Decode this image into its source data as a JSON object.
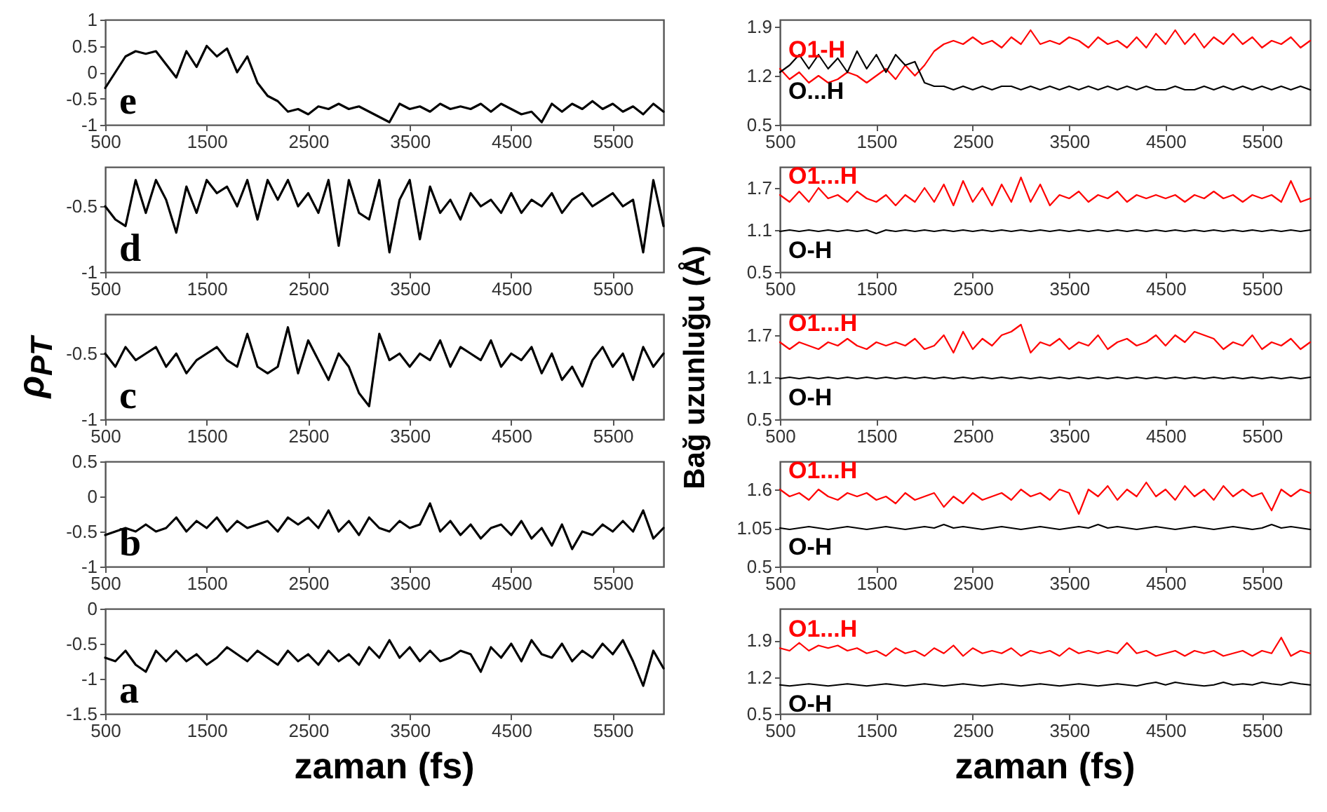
{
  "chart_data": [
    {
      "type": "line",
      "x": [
        500,
        600,
        700,
        800,
        900,
        1000,
        1100,
        1200,
        1300,
        1400,
        1500,
        1600,
        1700,
        1800,
        1900,
        2000,
        2100,
        2200,
        2300,
        2400,
        2500,
        2600,
        2700,
        2800,
        2900,
        3000,
        3100,
        3200,
        3300,
        3400,
        3500,
        3600,
        3700,
        3800,
        3900,
        4000,
        4100,
        4200,
        4300,
        4400,
        4500,
        4600,
        4700,
        4800,
        4900,
        5000,
        5100,
        5200,
        5300,
        5400,
        5500,
        5600,
        5700,
        5800,
        5900,
        6000
      ],
      "series": [
        {
          "color": "#000000",
          "values": [
            -0.3,
            0.0,
            0.3,
            0.4,
            0.35,
            0.4,
            0.15,
            -0.1,
            0.4,
            0.1,
            0.5,
            0.3,
            0.45,
            0.0,
            0.3,
            -0.2,
            -0.45,
            -0.55,
            -0.75,
            -0.7,
            -0.8,
            -0.65,
            -0.7,
            -0.6,
            -0.7,
            -0.65,
            -0.75,
            -0.85,
            -0.95,
            -0.6,
            -0.7,
            -0.65,
            -0.75,
            -0.6,
            -0.7,
            -0.65,
            -0.7,
            -0.6,
            -0.75,
            -0.6,
            -0.7,
            -0.8,
            -0.75,
            -0.95,
            -0.6,
            -0.75,
            -0.6,
            -0.7,
            -0.55,
            -0.7,
            -0.6,
            -0.75,
            -0.65,
            -0.8,
            -0.6,
            -0.75
          ]
        }
      ],
      "xlim": [
        500,
        6000
      ],
      "xticks": [
        500,
        1500,
        2500,
        3500,
        4500,
        5500
      ],
      "ylim": [
        -1,
        1
      ],
      "yticks": [
        -1,
        -0.5,
        0,
        0.5,
        1
      ],
      "annotations": [
        "e"
      ]
    },
    {
      "type": "line",
      "x": [
        500,
        600,
        700,
        800,
        900,
        1000,
        1100,
        1200,
        1300,
        1400,
        1500,
        1600,
        1700,
        1800,
        1900,
        2000,
        2100,
        2200,
        2300,
        2400,
        2500,
        2600,
        2700,
        2800,
        2900,
        3000,
        3100,
        3200,
        3300,
        3400,
        3500,
        3600,
        3700,
        3800,
        3900,
        4000,
        4100,
        4200,
        4300,
        4400,
        4500,
        4600,
        4700,
        4800,
        4900,
        5000,
        5100,
        5200,
        5300,
        5400,
        5500,
        5600,
        5700,
        5800,
        5900,
        6000
      ],
      "series": [
        {
          "color": "#000000",
          "values": [
            -0.5,
            -0.6,
            -0.65,
            -0.3,
            -0.55,
            -0.3,
            -0.45,
            -0.7,
            -0.35,
            -0.55,
            -0.3,
            -0.4,
            -0.35,
            -0.5,
            -0.3,
            -0.6,
            -0.3,
            -0.45,
            -0.3,
            -0.5,
            -0.4,
            -0.55,
            -0.3,
            -0.8,
            -0.3,
            -0.55,
            -0.6,
            -0.3,
            -0.85,
            -0.45,
            -0.3,
            -0.75,
            -0.35,
            -0.55,
            -0.45,
            -0.6,
            -0.4,
            -0.5,
            -0.45,
            -0.55,
            -0.4,
            -0.55,
            -0.45,
            -0.5,
            -0.4,
            -0.55,
            -0.45,
            -0.4,
            -0.5,
            -0.45,
            -0.4,
            -0.5,
            -0.45,
            -0.85,
            -0.3,
            -0.65
          ]
        }
      ],
      "xlim": [
        500,
        6000
      ],
      "xticks": [
        500,
        1500,
        2500,
        3500,
        4500,
        5500
      ],
      "ylim": [
        -1,
        -0.2
      ],
      "yticks": [
        -1,
        -0.5
      ],
      "annotations": [
        "d"
      ]
    },
    {
      "type": "line",
      "x": [
        500,
        600,
        700,
        800,
        900,
        1000,
        1100,
        1200,
        1300,
        1400,
        1500,
        1600,
        1700,
        1800,
        1900,
        2000,
        2100,
        2200,
        2300,
        2400,
        2500,
        2600,
        2700,
        2800,
        2900,
        3000,
        3100,
        3200,
        3300,
        3400,
        3500,
        3600,
        3700,
        3800,
        3900,
        4000,
        4100,
        4200,
        4300,
        4400,
        4500,
        4600,
        4700,
        4800,
        4900,
        5000,
        5100,
        5200,
        5300,
        5400,
        5500,
        5600,
        5700,
        5800,
        5900,
        6000
      ],
      "series": [
        {
          "color": "#000000",
          "values": [
            -0.5,
            -0.6,
            -0.45,
            -0.55,
            -0.5,
            -0.45,
            -0.6,
            -0.5,
            -0.65,
            -0.55,
            -0.5,
            -0.45,
            -0.55,
            -0.6,
            -0.35,
            -0.6,
            -0.65,
            -0.6,
            -0.3,
            -0.65,
            -0.4,
            -0.55,
            -0.7,
            -0.5,
            -0.6,
            -0.8,
            -0.9,
            -0.35,
            -0.55,
            -0.5,
            -0.6,
            -0.5,
            -0.55,
            -0.4,
            -0.6,
            -0.45,
            -0.5,
            -0.55,
            -0.4,
            -0.6,
            -0.5,
            -0.55,
            -0.45,
            -0.65,
            -0.5,
            -0.7,
            -0.6,
            -0.75,
            -0.55,
            -0.45,
            -0.6,
            -0.5,
            -0.7,
            -0.45,
            -0.6,
            -0.5
          ]
        }
      ],
      "xlim": [
        500,
        6000
      ],
      "xticks": [
        500,
        1500,
        2500,
        3500,
        4500,
        5500
      ],
      "ylim": [
        -1,
        -0.2
      ],
      "yticks": [
        -1,
        -0.5
      ],
      "ylabel": "ρ$_{PT}$",
      "annotations": [
        "c"
      ]
    },
    {
      "type": "line",
      "x": [
        500,
        600,
        700,
        800,
        900,
        1000,
        1100,
        1200,
        1300,
        1400,
        1500,
        1600,
        1700,
        1800,
        1900,
        2000,
        2100,
        2200,
        2300,
        2400,
        2500,
        2600,
        2700,
        2800,
        2900,
        3000,
        3100,
        3200,
        3300,
        3400,
        3500,
        3600,
        3700,
        3800,
        3900,
        4000,
        4100,
        4200,
        4300,
        4400,
        4500,
        4600,
        4700,
        4800,
        4900,
        5000,
        5100,
        5200,
        5300,
        5400,
        5500,
        5600,
        5700,
        5800,
        5900,
        6000
      ],
      "series": [
        {
          "color": "#000000",
          "values": [
            -0.55,
            -0.5,
            -0.45,
            -0.5,
            -0.4,
            -0.5,
            -0.45,
            -0.3,
            -0.5,
            -0.35,
            -0.45,
            -0.3,
            -0.5,
            -0.35,
            -0.45,
            -0.4,
            -0.35,
            -0.5,
            -0.3,
            -0.4,
            -0.3,
            -0.45,
            -0.2,
            -0.5,
            -0.35,
            -0.55,
            -0.3,
            -0.45,
            -0.5,
            -0.35,
            -0.45,
            -0.4,
            -0.1,
            -0.5,
            -0.35,
            -0.55,
            -0.4,
            -0.6,
            -0.45,
            -0.4,
            -0.55,
            -0.35,
            -0.6,
            -0.45,
            -0.7,
            -0.4,
            -0.75,
            -0.5,
            -0.55,
            -0.4,
            -0.5,
            -0.35,
            -0.5,
            -0.2,
            -0.6,
            -0.45
          ]
        }
      ],
      "xlim": [
        500,
        6000
      ],
      "xticks": [
        500,
        1500,
        2500,
        3500,
        4500,
        5500
      ],
      "ylim": [
        -1,
        0.5
      ],
      "yticks": [
        -1,
        -0.5,
        0,
        0.5
      ],
      "annotations": [
        "b"
      ]
    },
    {
      "type": "line",
      "x": [
        500,
        600,
        700,
        800,
        900,
        1000,
        1100,
        1200,
        1300,
        1400,
        1500,
        1600,
        1700,
        1800,
        1900,
        2000,
        2100,
        2200,
        2300,
        2400,
        2500,
        2600,
        2700,
        2800,
        2900,
        3000,
        3100,
        3200,
        3300,
        3400,
        3500,
        3600,
        3700,
        3800,
        3900,
        4000,
        4100,
        4200,
        4300,
        4400,
        4500,
        4600,
        4700,
        4800,
        4900,
        5000,
        5100,
        5200,
        5300,
        5400,
        5500,
        5600,
        5700,
        5800,
        5900,
        6000
      ],
      "series": [
        {
          "color": "#000000",
          "values": [
            -0.7,
            -0.75,
            -0.6,
            -0.8,
            -0.9,
            -0.6,
            -0.75,
            -0.6,
            -0.75,
            -0.65,
            -0.8,
            -0.7,
            -0.55,
            -0.65,
            -0.75,
            -0.6,
            -0.7,
            -0.8,
            -0.6,
            -0.75,
            -0.65,
            -0.8,
            -0.6,
            -0.75,
            -0.65,
            -0.8,
            -0.55,
            -0.7,
            -0.45,
            -0.7,
            -0.55,
            -0.75,
            -0.6,
            -0.75,
            -0.7,
            -0.6,
            -0.65,
            -0.9,
            -0.55,
            -0.7,
            -0.5,
            -0.75,
            -0.45,
            -0.65,
            -0.7,
            -0.5,
            -0.75,
            -0.6,
            -0.7,
            -0.5,
            -0.65,
            -0.45,
            -0.75,
            -1.1,
            -0.6,
            -0.85
          ]
        }
      ],
      "xlim": [
        500,
        6000
      ],
      "xticks": [
        500,
        1500,
        2500,
        3500,
        4500,
        5500
      ],
      "ylim": [
        -1.5,
        0
      ],
      "yticks": [
        -1.5,
        -1,
        -0.5,
        0
      ],
      "xlabel": "zaman (fs)",
      "annotations": [
        "a"
      ]
    },
    {
      "type": "line",
      "x": [
        500,
        600,
        700,
        800,
        900,
        1000,
        1100,
        1200,
        1300,
        1400,
        1500,
        1600,
        1700,
        1800,
        1900,
        2000,
        2100,
        2200,
        2300,
        2400,
        2500,
        2600,
        2700,
        2800,
        2900,
        3000,
        3100,
        3200,
        3300,
        3400,
        3500,
        3600,
        3700,
        3800,
        3900,
        4000,
        4100,
        4200,
        4300,
        4400,
        4500,
        4600,
        4700,
        4800,
        4900,
        5000,
        5100,
        5200,
        5300,
        5400,
        5500,
        5600,
        5700,
        5800,
        5900,
        6000
      ],
      "series": [
        {
          "name": "O1-H",
          "color": "#ff0000",
          "values": [
            1.3,
            1.15,
            1.25,
            1.1,
            1.2,
            1.1,
            1.15,
            1.25,
            1.2,
            1.1,
            1.2,
            1.3,
            1.15,
            1.35,
            1.2,
            1.35,
            1.55,
            1.65,
            1.7,
            1.65,
            1.75,
            1.65,
            1.7,
            1.6,
            1.75,
            1.65,
            1.85,
            1.65,
            1.7,
            1.65,
            1.75,
            1.7,
            1.6,
            1.75,
            1.65,
            1.7,
            1.6,
            1.75,
            1.6,
            1.8,
            1.65,
            1.85,
            1.65,
            1.8,
            1.6,
            1.75,
            1.65,
            1.8,
            1.65,
            1.75,
            1.6,
            1.7,
            1.65,
            1.75,
            1.6,
            1.7
          ]
        },
        {
          "name": "O...H",
          "color": "#000000",
          "values": [
            1.25,
            1.35,
            1.5,
            1.3,
            1.5,
            1.3,
            1.45,
            1.25,
            1.55,
            1.3,
            1.5,
            1.25,
            1.5,
            1.35,
            1.4,
            1.1,
            1.05,
            1.05,
            1.0,
            1.05,
            1.0,
            1.05,
            1.0,
            1.05,
            1.05,
            1.0,
            1.05,
            1.0,
            1.05,
            1.0,
            1.05,
            1.0,
            1.05,
            1.0,
            1.05,
            1.0,
            1.05,
            1.0,
            1.05,
            1.0,
            1.0,
            1.05,
            1.0,
            1.0,
            1.05,
            1.0,
            1.05,
            1.0,
            1.05,
            1.0,
            1.05,
            1.0,
            1.05,
            1.0,
            1.05,
            1.0
          ]
        }
      ],
      "xlim": [
        500,
        6000
      ],
      "xticks": [
        500,
        1500,
        2500,
        3500,
        4500,
        5500
      ],
      "ylim": [
        0.5,
        2.0
      ],
      "yticks": [
        0.5,
        1.2,
        1.9
      ]
    },
    {
      "type": "line",
      "x": [
        500,
        600,
        700,
        800,
        900,
        1000,
        1100,
        1200,
        1300,
        1400,
        1500,
        1600,
        1700,
        1800,
        1900,
        2000,
        2100,
        2200,
        2300,
        2400,
        2500,
        2600,
        2700,
        2800,
        2900,
        3000,
        3100,
        3200,
        3300,
        3400,
        3500,
        3600,
        3700,
        3800,
        3900,
        4000,
        4100,
        4200,
        4300,
        4400,
        4500,
        4600,
        4700,
        4800,
        4900,
        5000,
        5100,
        5200,
        5300,
        5400,
        5500,
        5600,
        5700,
        5800,
        5900,
        6000
      ],
      "series": [
        {
          "name": "O1...H",
          "color": "#ff0000",
          "values": [
            1.6,
            1.5,
            1.65,
            1.5,
            1.7,
            1.55,
            1.6,
            1.5,
            1.65,
            1.55,
            1.5,
            1.6,
            1.45,
            1.6,
            1.5,
            1.7,
            1.5,
            1.75,
            1.45,
            1.8,
            1.5,
            1.7,
            1.45,
            1.75,
            1.5,
            1.85,
            1.5,
            1.75,
            1.45,
            1.6,
            1.55,
            1.65,
            1.5,
            1.6,
            1.55,
            1.65,
            1.5,
            1.6,
            1.55,
            1.6,
            1.55,
            1.6,
            1.5,
            1.6,
            1.55,
            1.65,
            1.55,
            1.6,
            1.5,
            1.6,
            1.55,
            1.6,
            1.5,
            1.8,
            1.5,
            1.55
          ]
        },
        {
          "name": "O-H",
          "color": "#000000",
          "values": [
            1.08,
            1.1,
            1.08,
            1.1,
            1.08,
            1.1,
            1.08,
            1.1,
            1.08,
            1.1,
            1.05,
            1.1,
            1.08,
            1.1,
            1.08,
            1.1,
            1.08,
            1.1,
            1.08,
            1.1,
            1.08,
            1.1,
            1.08,
            1.1,
            1.08,
            1.1,
            1.08,
            1.1,
            1.08,
            1.1,
            1.08,
            1.1,
            1.08,
            1.1,
            1.08,
            1.1,
            1.08,
            1.1,
            1.08,
            1.1,
            1.08,
            1.1,
            1.08,
            1.1,
            1.08,
            1.1,
            1.08,
            1.1,
            1.08,
            1.1,
            1.08,
            1.1,
            1.08,
            1.1,
            1.08,
            1.1
          ]
        }
      ],
      "xlim": [
        500,
        6000
      ],
      "xticks": [
        500,
        1500,
        2500,
        3500,
        4500,
        5500
      ],
      "ylim": [
        0.5,
        2.0
      ],
      "yticks": [
        0.5,
        1.1,
        1.7
      ]
    },
    {
      "type": "line",
      "x": [
        500,
        600,
        700,
        800,
        900,
        1000,
        1100,
        1200,
        1300,
        1400,
        1500,
        1600,
        1700,
        1800,
        1900,
        2000,
        2100,
        2200,
        2300,
        2400,
        2500,
        2600,
        2700,
        2800,
        2900,
        3000,
        3100,
        3200,
        3300,
        3400,
        3500,
        3600,
        3700,
        3800,
        3900,
        4000,
        4100,
        4200,
        4300,
        4400,
        4500,
        4600,
        4700,
        4800,
        4900,
        5000,
        5100,
        5200,
        5300,
        5400,
        5500,
        5600,
        5700,
        5800,
        5900,
        6000
      ],
      "series": [
        {
          "name": "O1...H",
          "color": "#ff0000",
          "values": [
            1.6,
            1.5,
            1.6,
            1.55,
            1.5,
            1.6,
            1.55,
            1.65,
            1.55,
            1.5,
            1.6,
            1.55,
            1.6,
            1.55,
            1.65,
            1.5,
            1.55,
            1.7,
            1.45,
            1.75,
            1.5,
            1.65,
            1.55,
            1.7,
            1.75,
            1.85,
            1.45,
            1.6,
            1.55,
            1.65,
            1.5,
            1.6,
            1.55,
            1.7,
            1.5,
            1.6,
            1.65,
            1.55,
            1.6,
            1.7,
            1.55,
            1.7,
            1.6,
            1.75,
            1.7,
            1.65,
            1.5,
            1.6,
            1.55,
            1.7,
            1.5,
            1.6,
            1.55,
            1.65,
            1.5,
            1.6
          ]
        },
        {
          "name": "O-H",
          "color": "#000000",
          "values": [
            1.08,
            1.1,
            1.08,
            1.1,
            1.08,
            1.1,
            1.08,
            1.1,
            1.08,
            1.1,
            1.08,
            1.1,
            1.08,
            1.1,
            1.08,
            1.1,
            1.08,
            1.1,
            1.08,
            1.1,
            1.08,
            1.1,
            1.08,
            1.1,
            1.08,
            1.1,
            1.08,
            1.1,
            1.08,
            1.1,
            1.08,
            1.1,
            1.08,
            1.1,
            1.08,
            1.1,
            1.08,
            1.1,
            1.08,
            1.1,
            1.08,
            1.1,
            1.08,
            1.1,
            1.08,
            1.1,
            1.08,
            1.1,
            1.08,
            1.1,
            1.08,
            1.1,
            1.08,
            1.1,
            1.08,
            1.1
          ]
        }
      ],
      "xlim": [
        500,
        6000
      ],
      "xticks": [
        500,
        1500,
        2500,
        3500,
        4500,
        5500
      ],
      "ylim": [
        0.5,
        2.0
      ],
      "yticks": [
        0.5,
        1.1,
        1.7
      ],
      "ylabel": "Bağ uzunluğu (Å)"
    },
    {
      "type": "line",
      "x": [
        500,
        600,
        700,
        800,
        900,
        1000,
        1100,
        1200,
        1300,
        1400,
        1500,
        1600,
        1700,
        1800,
        1900,
        2000,
        2100,
        2200,
        2300,
        2400,
        2500,
        2600,
        2700,
        2800,
        2900,
        3000,
        3100,
        3200,
        3300,
        3400,
        3500,
        3600,
        3700,
        3800,
        3900,
        4000,
        4100,
        4200,
        4300,
        4400,
        4500,
        4600,
        4700,
        4800,
        4900,
        5000,
        5100,
        5200,
        5300,
        5400,
        5500,
        5600,
        5700,
        5800,
        5900,
        6000
      ],
      "series": [
        {
          "name": "O1...H",
          "color": "#ff0000",
          "values": [
            1.6,
            1.5,
            1.55,
            1.45,
            1.6,
            1.5,
            1.45,
            1.55,
            1.5,
            1.55,
            1.45,
            1.5,
            1.4,
            1.55,
            1.45,
            1.5,
            1.55,
            1.35,
            1.5,
            1.4,
            1.55,
            1.45,
            1.5,
            1.55,
            1.45,
            1.6,
            1.5,
            1.55,
            1.45,
            1.6,
            1.55,
            1.25,
            1.6,
            1.5,
            1.65,
            1.45,
            1.6,
            1.5,
            1.7,
            1.5,
            1.6,
            1.45,
            1.65,
            1.5,
            1.6,
            1.45,
            1.65,
            1.5,
            1.6,
            1.5,
            1.55,
            1.3,
            1.6,
            1.5,
            1.6,
            1.55
          ]
        },
        {
          "name": "O-H",
          "color": "#000000",
          "values": [
            1.05,
            1.03,
            1.05,
            1.07,
            1.05,
            1.03,
            1.05,
            1.07,
            1.05,
            1.03,
            1.05,
            1.07,
            1.05,
            1.03,
            1.05,
            1.07,
            1.05,
            1.1,
            1.05,
            1.07,
            1.05,
            1.03,
            1.05,
            1.07,
            1.05,
            1.03,
            1.05,
            1.07,
            1.05,
            1.03,
            1.05,
            1.07,
            1.05,
            1.1,
            1.05,
            1.07,
            1.05,
            1.03,
            1.05,
            1.07,
            1.05,
            1.03,
            1.05,
            1.07,
            1.05,
            1.03,
            1.05,
            1.07,
            1.05,
            1.03,
            1.05,
            1.1,
            1.05,
            1.07,
            1.05,
            1.03
          ]
        }
      ],
      "xlim": [
        500,
        6000
      ],
      "xticks": [
        500,
        1500,
        2500,
        3500,
        4500,
        5500
      ],
      "ylim": [
        0.5,
        2.0
      ],
      "yticks": [
        0.5,
        1.05,
        1.6
      ]
    },
    {
      "type": "line",
      "x": [
        500,
        600,
        700,
        800,
        900,
        1000,
        1100,
        1200,
        1300,
        1400,
        1500,
        1600,
        1700,
        1800,
        1900,
        2000,
        2100,
        2200,
        2300,
        2400,
        2500,
        2600,
        2700,
        2800,
        2900,
        3000,
        3100,
        3200,
        3300,
        3400,
        3500,
        3600,
        3700,
        3800,
        3900,
        4000,
        4100,
        4200,
        4300,
        4400,
        4500,
        4600,
        4700,
        4800,
        4900,
        5000,
        5100,
        5200,
        5300,
        5400,
        5500,
        5600,
        5700,
        5800,
        5900,
        6000
      ],
      "series": [
        {
          "name": "O1...H",
          "color": "#ff0000",
          "values": [
            1.75,
            1.7,
            1.85,
            1.7,
            1.8,
            1.75,
            1.8,
            1.7,
            1.75,
            1.65,
            1.7,
            1.6,
            1.75,
            1.65,
            1.7,
            1.6,
            1.75,
            1.65,
            1.8,
            1.6,
            1.75,
            1.65,
            1.7,
            1.65,
            1.75,
            1.6,
            1.7,
            1.65,
            1.7,
            1.6,
            1.75,
            1.65,
            1.7,
            1.65,
            1.7,
            1.65,
            1.85,
            1.65,
            1.7,
            1.6,
            1.65,
            1.7,
            1.6,
            1.7,
            1.65,
            1.7,
            1.6,
            1.65,
            1.7,
            1.6,
            1.7,
            1.65,
            1.95,
            1.6,
            1.7,
            1.65
          ]
        },
        {
          "name": "O-H",
          "color": "#000000",
          "values": [
            1.05,
            1.03,
            1.05,
            1.07,
            1.05,
            1.03,
            1.05,
            1.07,
            1.05,
            1.03,
            1.05,
            1.07,
            1.05,
            1.03,
            1.05,
            1.07,
            1.05,
            1.03,
            1.05,
            1.07,
            1.05,
            1.03,
            1.05,
            1.07,
            1.05,
            1.03,
            1.05,
            1.07,
            1.05,
            1.03,
            1.05,
            1.07,
            1.05,
            1.03,
            1.05,
            1.07,
            1.05,
            1.03,
            1.07,
            1.1,
            1.05,
            1.1,
            1.07,
            1.05,
            1.03,
            1.05,
            1.1,
            1.05,
            1.07,
            1.05,
            1.1,
            1.07,
            1.05,
            1.1,
            1.07,
            1.05
          ]
        }
      ],
      "xlim": [
        500,
        6000
      ],
      "xticks": [
        500,
        1500,
        2500,
        3500,
        4500,
        5500
      ],
      "ylim": [
        0.5,
        2.5
      ],
      "yticks": [
        0.5,
        1.2,
        1.9
      ],
      "xlabel": "zaman (fs)"
    }
  ]
}
